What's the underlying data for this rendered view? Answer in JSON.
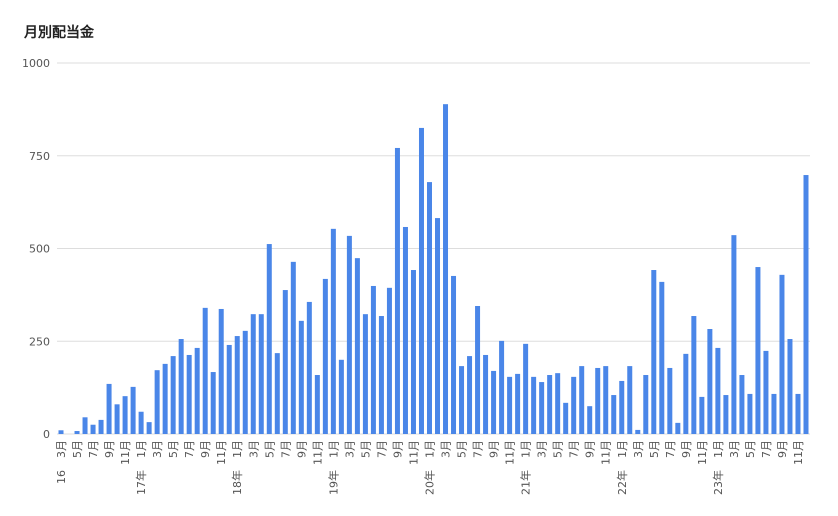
{
  "chart_data": {
    "type": "bar",
    "title": "月別配当金",
    "categories": [
      "3月",
      null,
      "5月",
      null,
      "7月",
      null,
      "9月",
      null,
      "11月",
      null,
      "1月",
      null,
      "3月",
      null,
      "5月",
      null,
      "7月",
      null,
      "9月",
      null,
      "11月",
      null,
      "1月",
      null,
      "3月",
      null,
      "5月",
      null,
      "7月",
      null,
      "9月",
      null,
      "11月",
      null,
      "1月",
      null,
      "3月",
      null,
      "5月",
      null,
      "7月",
      null,
      "9月",
      null,
      "11月",
      null,
      "1月",
      null,
      "3月",
      null,
      "5月",
      null,
      "7月",
      null,
      "9月",
      null,
      "11月",
      null,
      "1月",
      null,
      "3月",
      null,
      "5月",
      null,
      "7月",
      null,
      "9月",
      null,
      "11月",
      null,
      "1月",
      null,
      "3月",
      null,
      "5月",
      null,
      "7月",
      null,
      "9月",
      null,
      "11月",
      null,
      "1月",
      null,
      "3月",
      null,
      "5月",
      null,
      "7月",
      null,
      "9月",
      null,
      "11月",
      null
    ],
    "year_labels": [
      "16",
      null,
      null,
      null,
      null,
      null,
      null,
      null,
      null,
      null,
      "17年",
      null,
      null,
      null,
      null,
      null,
      null,
      null,
      null,
      null,
      null,
      null,
      "18年",
      null,
      null,
      null,
      null,
      null,
      null,
      null,
      null,
      null,
      null,
      null,
      "19年",
      null,
      null,
      null,
      null,
      null,
      null,
      null,
      null,
      null,
      null,
      null,
      "20年",
      null,
      null,
      null,
      null,
      null,
      null,
      null,
      null,
      null,
      null,
      null,
      "21年",
      null,
      null,
      null,
      null,
      null,
      null,
      null,
      null,
      null,
      null,
      null,
      "22年",
      null,
      null,
      null,
      null,
      null,
      null,
      null,
      null,
      null,
      null,
      null,
      "23年",
      null,
      null,
      null,
      null,
      null,
      null,
      null,
      null,
      null,
      null,
      null
    ],
    "values": [
      10,
      0,
      8,
      45,
      25,
      38,
      135,
      80,
      102,
      127,
      60,
      32,
      172,
      189,
      210,
      256,
      213,
      232,
      340,
      167,
      337,
      240,
      264,
      278,
      323,
      323,
      512,
      218,
      388,
      464,
      305,
      356,
      159,
      418,
      553,
      200,
      534,
      474,
      323,
      399,
      318,
      394,
      771,
      558,
      442,
      825,
      679,
      582,
      889,
      426,
      183,
      210,
      345,
      213,
      170,
      251,
      154,
      162,
      243,
      154,
      140,
      159,
      164,
      84,
      154,
      183,
      75,
      178,
      183,
      105,
      143,
      183,
      11,
      159,
      442,
      410,
      178,
      30,
      216,
      318,
      100,
      283,
      232,
      105,
      536,
      159,
      108,
      450,
      224,
      108,
      429,
      256,
      108,
      698
    ],
    "color": "#4a86e8",
    "ylim": [
      0,
      1000
    ],
    "yticks": [
      0,
      250,
      500,
      750,
      1000
    ],
    "grid": true
  }
}
